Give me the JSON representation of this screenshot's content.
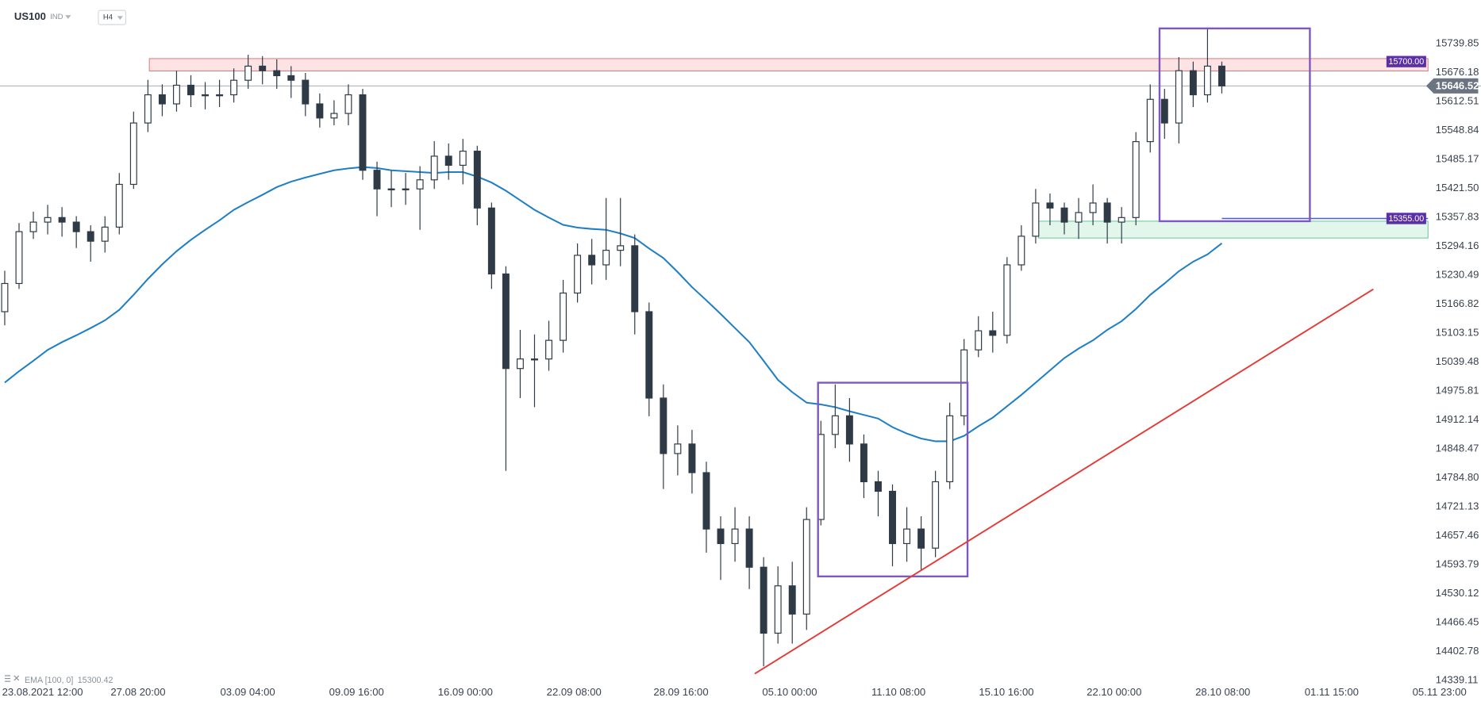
{
  "chart_data": {
    "type": "candlestick",
    "symbol": "US100",
    "market": "IND",
    "timeframe": "H4",
    "up_color": "#ffffff",
    "down_color": "#2e3a46",
    "edge_color": "#2e3a46",
    "xlim": [
      -0.33,
      103.1
    ],
    "ylim": [
      14328.7,
      15835.4
    ],
    "open": [
      15150,
      15212,
      15326,
      15347,
      15357,
      15347,
      15326,
      15305,
      15336,
      15430,
      15565,
      15627,
      15607,
      15648,
      15627,
      15627,
      15627,
      15659,
      15690,
      15680,
      15669,
      15659,
      15607,
      15576,
      15586,
      15627,
      15461,
      15420,
      15420,
      15420,
      15440,
      15492,
      15472,
      15503,
      15378,
      15233,
      15025,
      15046,
      15046,
      15087,
      15191,
      15274,
      15253,
      15285,
      15295,
      15150,
      14960,
      14838,
      14859,
      14796,
      14672,
      14640,
      14672,
      14588,
      14443,
      14547,
      14485,
      14693,
      14880,
      14921,
      14859,
      14776,
      14755,
      14640,
      14672,
      14630,
      14776,
      14921,
      15066,
      15108,
      15098,
      15253,
      15316,
      15389,
      15378,
      15347,
      15368,
      15389,
      15347,
      15357,
      15524,
      15617,
      15565,
      15680,
      15627,
      15690
    ],
    "high": [
      15240,
      15345,
      15370,
      15385,
      15380,
      15360,
      15340,
      15360,
      15455,
      15590,
      15660,
      15650,
      15680,
      15670,
      15655,
      15660,
      15685,
      15715,
      15712,
      15705,
      15690,
      15675,
      15630,
      15615,
      15650,
      15640,
      15480,
      15460,
      15455,
      15470,
      15525,
      15520,
      15530,
      15515,
      15390,
      15250,
      15110,
      15100,
      15130,
      15220,
      15300,
      15310,
      15400,
      15400,
      15320,
      15170,
      14990,
      14900,
      14890,
      14820,
      14700,
      14720,
      14700,
      14610,
      14590,
      14600,
      14720,
      14910,
      14990,
      14960,
      14880,
      14800,
      14770,
      14720,
      14700,
      14800,
      14950,
      15090,
      15140,
      15150,
      15270,
      15340,
      15420,
      15410,
      15390,
      15400,
      15430,
      15400,
      15380,
      15545,
      15650,
      15640,
      15710,
      15700,
      15773,
      15700
    ],
    "low": [
      15120,
      15200,
      15310,
      15320,
      15315,
      15290,
      15260,
      15280,
      15320,
      15420,
      15545,
      15580,
      15590,
      15600,
      15595,
      15600,
      15610,
      15640,
      15650,
      15640,
      15620,
      15580,
      15555,
      15560,
      15560,
      15440,
      15360,
      15380,
      15385,
      15330,
      15420,
      15440,
      15430,
      15340,
      15200,
      14800,
      14960,
      14940,
      15020,
      15060,
      15170,
      15210,
      15220,
      15250,
      15100,
      14920,
      14760,
      14790,
      14750,
      14620,
      14560,
      14600,
      14540,
      14370,
      14420,
      14420,
      14450,
      14680,
      14850,
      14820,
      14740,
      14700,
      14590,
      14600,
      14580,
      14610,
      14760,
      14900,
      15050,
      15060,
      15080,
      15240,
      15300,
      15340,
      15320,
      15310,
      15340,
      15300,
      15300,
      15340,
      15500,
      15530,
      15520,
      15600,
      15610,
      15630
    ],
    "close": [
      15212,
      15326,
      15347,
      15357,
      15347,
      15326,
      15305,
      15336,
      15430,
      15565,
      15627,
      15607,
      15648,
      15627,
      15627,
      15627,
      15659,
      15690,
      15680,
      15669,
      15659,
      15607,
      15576,
      15586,
      15627,
      15461,
      15420,
      15420,
      15420,
      15440,
      15492,
      15472,
      15503,
      15378,
      15233,
      15025,
      15046,
      15046,
      15087,
      15191,
      15274,
      15253,
      15285,
      15295,
      15150,
      14960,
      14838,
      14859,
      14796,
      14672,
      14640,
      14672,
      14588,
      14443,
      14547,
      14485,
      14693,
      14880,
      14921,
      14859,
      14776,
      14755,
      14640,
      14672,
      14630,
      14776,
      14921,
      15066,
      15108,
      15098,
      15253,
      15316,
      15389,
      15378,
      15347,
      15368,
      15389,
      15347,
      15357,
      15524,
      15617,
      15565,
      15680,
      15627,
      15690,
      15646.52
    ],
    "series": [
      {
        "name": "EMA [100, 0]",
        "color": "#1f7fc4",
        "values": [
          14994,
          15019,
          15042,
          15066,
          15083,
          15098,
          15114,
          15131,
          15154,
          15187,
          15222,
          15254,
          15283,
          15308,
          15330,
          15351,
          15374,
          15391,
          15407,
          15424,
          15436,
          15445,
          15453,
          15461,
          15465,
          15468,
          15466,
          15461,
          15459,
          15457,
          15455,
          15457,
          15457,
          15447,
          15434,
          15416,
          15395,
          15374,
          15357,
          15341,
          15335,
          15332,
          15330,
          15322,
          15312,
          15289,
          15268,
          15237,
          15204,
          15175,
          15145,
          15114,
          15083,
          15042,
          15000,
          14973,
          14950,
          14946,
          14940,
          14931,
          14923,
          14915,
          14896,
          14882,
          14871,
          14865,
          14865,
          14877,
          14898,
          14917,
          14942,
          14967,
          14994,
          15021,
          15048,
          15069,
          15087,
          15110,
          15129,
          15156,
          15187,
          15212,
          15239,
          15260,
          15276,
          15300.42
        ]
      }
    ],
    "yticks": [
      15739.85,
      15676.18,
      15612.51,
      15548.84,
      15485.17,
      {
        "value": 15421.5,
        "label": "15421.50"
      },
      15357.83,
      15294.16,
      15230.49,
      15166.82,
      15103.15,
      15039.48,
      14975.81,
      14912.14,
      14848.47,
      {
        "value": 14784.8,
        "label": "14784.80"
      },
      14721.13,
      14657.46,
      14593.79,
      14530.12,
      14466.45,
      14402.78,
      14339.11
    ],
    "xticks": [
      {
        "value": 2.64,
        "label": "23.08.2021  12:00"
      },
      {
        "value": 9.31,
        "label": "27.08  20:00"
      },
      {
        "value": 16.97,
        "label": "03.09  04:00"
      },
      {
        "value": 24.57,
        "label": "09.09  16:00"
      },
      {
        "value": 32.17,
        "label": "16.09  00:00"
      },
      {
        "value": 39.76,
        "label": "22.09  08:00"
      },
      {
        "value": 47.23,
        "label": "28.09  16:00"
      },
      {
        "value": 54.82,
        "label": "05.10  00:00"
      },
      {
        "value": 62.42,
        "label": "11.10  08:00"
      },
      {
        "value": 69.95,
        "label": "15.10  16:00"
      },
      {
        "value": 77.48,
        "label": "22.10  00:00"
      },
      {
        "value": 85.07,
        "label": "28.10  08:00"
      },
      {
        "value": 92.67,
        "label": "01.11  15:00"
      },
      {
        "value": 100.2,
        "label": "05.11  23:00"
      }
    ],
    "zones": [
      {
        "x": [
          10.1,
          99.4
        ],
        "y": [
          15679.4,
          15706.6
        ],
        "fill": "#fde3e3",
        "color": "#e47070"
      },
      {
        "x": [
          72.19,
          99.4
        ],
        "y": [
          15312,
          15349
        ],
        "fill": "#e2f6ec",
        "color": "#5cc593"
      }
    ],
    "boxes": [
      {
        "x": [
          56.8,
          67.24
        ],
        "y": [
          14567.8,
          14993.8
        ],
        "color": "#7e57c2"
      },
      {
        "x": [
          80.65,
          91.15
        ],
        "y": [
          15349,
          15773
        ],
        "color": "#7e57c2"
      }
    ],
    "trend_line": {
      "x": [
        52.38,
        95.58
      ],
      "y": [
        14353.7,
        15199.5
      ],
      "color": "#e53935"
    },
    "price_levels": [
      {
        "level": {
          "value": 15700,
          "label": "15700.00"
        },
        "color": "#5b2fa8"
      },
      {
        "level": {
          "value": 15355,
          "label": "15355.00"
        },
        "color": "#5b2fa8"
      }
    ],
    "current_price_color": "#6b7480"
  }
}
